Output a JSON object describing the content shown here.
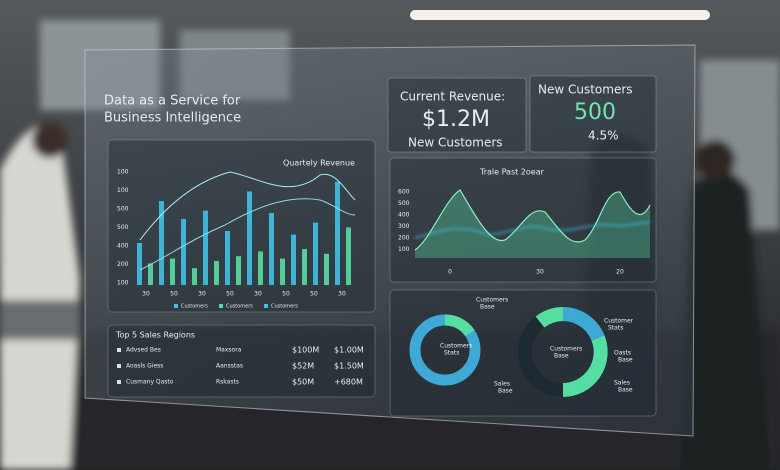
{
  "header": {
    "title_line1": "Data as a Service for",
    "title_line2": "Business Intelligence"
  },
  "kpi": {
    "revenue_label": "Current Revenue:",
    "revenue_value": "$1.2M",
    "revenue_caption": "New Customers",
    "customers_label": "New Customers",
    "customers_value": "500",
    "customers_change": "4.5%"
  },
  "bar_panel": {
    "title": "Quartely Revenue",
    "y_labels": [
      "100",
      "100",
      "500",
      "500",
      "400",
      "200",
      "100"
    ],
    "x_labels": [
      "30",
      "50",
      "30",
      "50",
      "30",
      "50",
      "50",
      "30"
    ],
    "legend": [
      "Customers",
      "Customers",
      "Customers"
    ],
    "bars": [
      35,
      18,
      70,
      22,
      55,
      14,
      62,
      20,
      45,
      24,
      78,
      28,
      60,
      22,
      42,
      30,
      52,
      26,
      86,
      48
    ],
    "bar_colors": [
      "#3fc1e6",
      "#56dea2"
    ]
  },
  "line_panel": {
    "title": "Trale Past 2oear",
    "y_labels": [
      "600",
      "500",
      "400",
      "300",
      "200",
      "100"
    ],
    "x_labels": [
      "0",
      "30",
      "20"
    ]
  },
  "table": {
    "title": "Top 5 Sales Regions",
    "rows": [
      [
        "Advsed Bes",
        "Maxsora",
        "$100M",
        "$1.00M"
      ],
      [
        "Aoasls Giess",
        "Aansstas",
        "$52M",
        "$1.50M"
      ],
      [
        "Cusmany Qasto",
        "Rskasts",
        "$50M",
        "+680M"
      ]
    ]
  },
  "donuts": {
    "labels": [
      {
        "line1": "Customers",
        "line2": "Base"
      },
      {
        "line1": "Customers",
        "line2": "Stats"
      },
      {
        "line1": "Sales",
        "line2": "Base"
      },
      {
        "line1": "Customer",
        "line2": "Stats"
      },
      {
        "line1": "Customers",
        "line2": "Base"
      },
      {
        "line1": "Oasts",
        "line2": "Base"
      },
      {
        "line1": "Sales",
        "line2": "Base"
      }
    ]
  }
}
